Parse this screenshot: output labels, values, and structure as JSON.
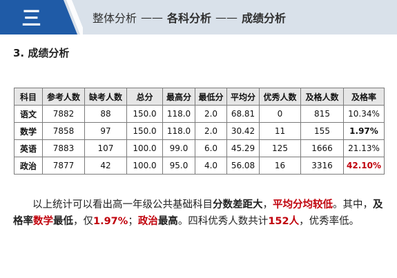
{
  "header": {
    "badge": "三",
    "breadcrumb": {
      "part1": "整体分析",
      "sep1": "——",
      "part2": "各科分析",
      "sep2": "——",
      "part3": "成绩分析"
    },
    "colors": {
      "band": "#d9e1ea",
      "badge": "#1f5ba7"
    }
  },
  "section": {
    "title": "3. 成绩分析"
  },
  "table": {
    "headers": [
      "科目",
      "参考人数",
      "缺考人数",
      "总分",
      "最高分",
      "最低分",
      "平均分",
      "优秀人数",
      "及格人数",
      "及格率"
    ],
    "rows": [
      [
        "语文",
        "7882",
        "88",
        "150.0",
        "118.0",
        "2.0",
        "68.81",
        "0",
        "815",
        "10.34%"
      ],
      [
        "数学",
        "7858",
        "97",
        "150.0",
        "118.0",
        "2.0",
        "30.42",
        "11",
        "155",
        "1.97%"
      ],
      [
        "英语",
        "7883",
        "107",
        "100.0",
        "99.0",
        "6.0",
        "45.29",
        "125",
        "1666",
        "21.13%"
      ],
      [
        "政治",
        "7877",
        "42",
        "100.0",
        "95.0",
        "4.0",
        "56.08",
        "16",
        "3316",
        "42.10%"
      ]
    ],
    "highlight_color": "#c0000b"
  },
  "summary": {
    "s1": "以上统计可以看出高一年级公共基础科目",
    "s2": "分数差距大",
    "s3": "，",
    "s4": "平均分均较低",
    "s5": "。其中，",
    "s6": "及格率",
    "s7": "数学",
    "s8": "最低",
    "s9": "，仅",
    "s10": "1.97%",
    "s11": "；",
    "s12": "政治",
    "s13": "最高",
    "s14": "。四科优秀人数共计",
    "s15": "152人",
    "s16": "，优秀率低。"
  }
}
